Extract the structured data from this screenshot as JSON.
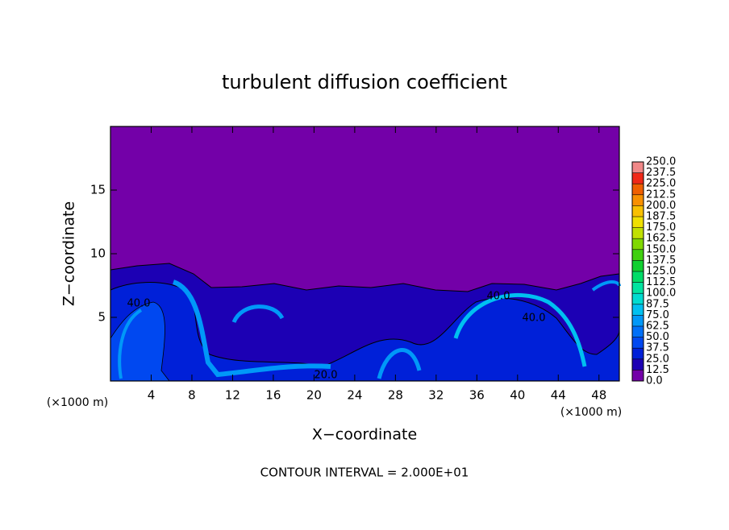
{
  "chart_data": {
    "type": "contour",
    "title": "turbulent diffusion coefficient",
    "x_label": "X−coordinate",
    "y_label": "Z−coordinate",
    "x_unit": "(×1000 m)",
    "footer": "CONTOUR INTERVAL = 2.000E+01",
    "xlim": [
      0,
      50
    ],
    "ylim": [
      0,
      20
    ],
    "xticks": [
      4,
      8,
      12,
      16,
      20,
      24,
      28,
      32,
      36,
      40,
      44,
      48
    ],
    "yticks": [
      5,
      10,
      15
    ],
    "contour_labels": [
      {
        "value": 40,
        "label": "40.0"
      },
      {
        "value": 40,
        "label": "40.0"
      },
      {
        "value": 40,
        "label": "40.0"
      },
      {
        "value": 20,
        "label": "20.0"
      }
    ],
    "colorbar": {
      "ticks": [
        {
          "value": 0,
          "label": "0.0"
        },
        {
          "value": 12.5,
          "label": "12.5"
        },
        {
          "value": 25,
          "label": "25.0"
        },
        {
          "value": 37.5,
          "label": "37.5"
        },
        {
          "value": 50,
          "label": "50.0"
        },
        {
          "value": 62.5,
          "label": "62.5"
        },
        {
          "value": 75,
          "label": "75.0"
        },
        {
          "value": 87.5,
          "label": "87.5"
        },
        {
          "value": 100,
          "label": "100.0"
        },
        {
          "value": 112.5,
          "label": "112.5"
        },
        {
          "value": 125,
          "label": "125.0"
        },
        {
          "value": 137.5,
          "label": "137.5"
        },
        {
          "value": 150,
          "label": "150.0"
        },
        {
          "value": 162.5,
          "label": "162.5"
        },
        {
          "value": 175,
          "label": "175.0"
        },
        {
          "value": 187.5,
          "label": "187.5"
        },
        {
          "value": 200,
          "label": "200.0"
        },
        {
          "value": 212.5,
          "label": "212.5"
        },
        {
          "value": 225,
          "label": "225.0"
        },
        {
          "value": 237.5,
          "label": "237.5"
        },
        {
          "value": 250,
          "label": "250.0"
        }
      ],
      "colors": [
        "#7300a8",
        "#1c00b4",
        "#0020d8",
        "#0048f0",
        "#0070f8",
        "#0098f8",
        "#00c0f0",
        "#00dcd0",
        "#00e4a0",
        "#00dc68",
        "#10d030",
        "#40d010",
        "#80d800",
        "#c0e000",
        "#f0e000",
        "#f8c000",
        "#f89000",
        "#f06000",
        "#f02818",
        "#f08888"
      ]
    }
  }
}
